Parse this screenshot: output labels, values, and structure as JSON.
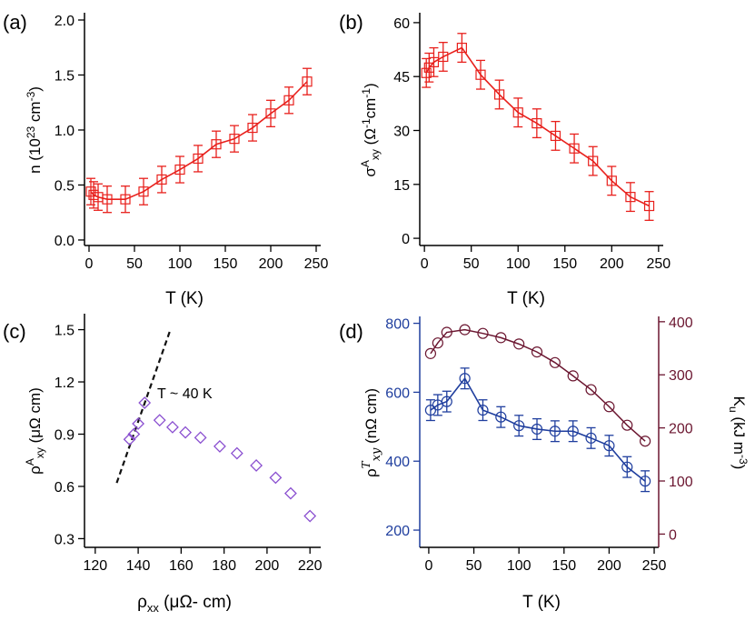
{
  "chart_data": [
    {
      "panel": "(a)",
      "type": "line",
      "xlabel": "T (K)",
      "ylabel_main": "n (10",
      "ylabel_sup": "23",
      "ylabel_tail": " cm",
      "ylabel_sup2": "-3",
      "ylabel_close": ")",
      "xlim": [
        -5,
        255
      ],
      "ylim": [
        -0.05,
        2.0
      ],
      "xticks": [
        0,
        50,
        100,
        150,
        200,
        250
      ],
      "yticks": [
        0.0,
        0.5,
        1.0,
        1.5,
        2.0
      ],
      "ytick_labels": [
        "0.0",
        "0.5",
        "1.0",
        "1.5",
        "2.0"
      ],
      "color": "#e8201c",
      "series": [
        {
          "name": "n",
          "x": [
            2,
            5,
            10,
            20,
            40,
            60,
            80,
            100,
            120,
            140,
            160,
            180,
            200,
            220,
            240
          ],
          "y": [
            0.44,
            0.41,
            0.39,
            0.37,
            0.37,
            0.44,
            0.55,
            0.64,
            0.74,
            0.87,
            0.92,
            1.02,
            1.15,
            1.27,
            1.44
          ],
          "err": [
            0.12,
            0.12,
            0.12,
            0.12,
            0.12,
            0.12,
            0.12,
            0.12,
            0.12,
            0.12,
            0.12,
            0.12,
            0.12,
            0.12,
            0.12
          ]
        }
      ]
    },
    {
      "panel": "(b)",
      "type": "line",
      "xlabel": "T (K)",
      "ylabel_main": "σ",
      "ylabel_sup": "A",
      "ylabel_sub": "xy",
      "ylabel_unit": " (Ω",
      "ylabel_sup2": "-1",
      "ylabel_unit2": "cm",
      "ylabel_sup3": "-1",
      "ylabel_close": ")",
      "xlim": [
        -5,
        255
      ],
      "ylim": [
        -2,
        62
      ],
      "xticks": [
        0,
        50,
        100,
        150,
        200,
        250
      ],
      "yticks": [
        0,
        15,
        30,
        45,
        60
      ],
      "ytick_labels": [
        "0",
        "15",
        "30",
        "45",
        "60"
      ],
      "color": "#e8201c",
      "series": [
        {
          "name": "sigma_A_xy",
          "x": [
            2,
            5,
            10,
            20,
            40,
            60,
            80,
            100,
            120,
            140,
            160,
            180,
            200,
            220,
            240
          ],
          "y": [
            46,
            47.5,
            49,
            50.5,
            53,
            45.5,
            40,
            35,
            32,
            28.5,
            25,
            21.5,
            16,
            11.5,
            9
          ],
          "err": [
            4,
            4,
            4,
            4,
            4,
            4,
            4,
            4,
            4,
            4,
            4,
            4,
            4,
            4,
            4
          ]
        }
      ]
    },
    {
      "panel": "(c)",
      "type": "scatter",
      "xlabel_main": "ρ",
      "xlabel_sub": "xx",
      "xlabel_unit": " (μΩ- cm)",
      "ylabel_main": "ρ",
      "ylabel_sup": "A",
      "ylabel_sub": "xy",
      "ylabel_unit": " (μΩ cm)",
      "annotation": "T ~ 40 K",
      "xlim": [
        115,
        225
      ],
      "ylim": [
        0.25,
        1.55
      ],
      "xticks": [
        120,
        140,
        160,
        180,
        200,
        220
      ],
      "yticks": [
        0.3,
        0.6,
        0.9,
        1.2,
        1.5
      ],
      "ytick_labels": [
        "0.3",
        "0.6",
        "0.9",
        "1.2",
        "1.5"
      ],
      "color": "#8a4fd0",
      "series": [
        {
          "name": "rho_A_xy vs rho_xx",
          "x": [
            136,
            138,
            140,
            143,
            150,
            156,
            162,
            169,
            178,
            186,
            195,
            204,
            211,
            220
          ],
          "y": [
            0.87,
            0.9,
            0.96,
            1.08,
            0.98,
            0.94,
            0.91,
            0.88,
            0.83,
            0.79,
            0.72,
            0.65,
            0.56,
            0.43
          ]
        }
      ],
      "fit_line": {
        "x": [
          130,
          155
        ],
        "y": [
          0.62,
          1.5
        ],
        "style": "dashed",
        "color": "#111111"
      }
    },
    {
      "panel": "(d)",
      "type": "line",
      "xlabel": "T (K)",
      "ylabel_left_main": "ρ",
      "ylabel_left_sup": "T",
      "ylabel_left_sub": "xy",
      "ylabel_left_unit": " (nΩ cm)",
      "ylabel_right_main": "K",
      "ylabel_right_sub": "u",
      "ylabel_right_unit": " (kJ m",
      "ylabel_right_sup": "-3",
      "ylabel_right_close": ")",
      "xlim": [
        -10,
        255
      ],
      "ylim_left": [
        150,
        820
      ],
      "ylim_right": [
        -25,
        410
      ],
      "xticks": [
        0,
        50,
        100,
        150,
        200,
        250
      ],
      "yticks_left": [
        200,
        400,
        600,
        800
      ],
      "ytick_labels_left": [
        "200",
        "400",
        "600",
        "800"
      ],
      "yticks_right": [
        0,
        100,
        200,
        300,
        400
      ],
      "ytick_labels_right": [
        "0",
        "100",
        "200",
        "300",
        "400"
      ],
      "color_left": "#1f3e9e",
      "color_right": "#6b1630",
      "series": [
        {
          "name": "rho_T_xy",
          "axis": "left",
          "x": [
            2,
            10,
            20,
            40,
            60,
            80,
            100,
            120,
            140,
            160,
            180,
            200,
            220,
            240
          ],
          "y": [
            548,
            563,
            573,
            640,
            548,
            528,
            503,
            493,
            487,
            487,
            467,
            445,
            383,
            342
          ],
          "err": [
            30,
            30,
            30,
            30,
            30,
            30,
            30,
            30,
            30,
            30,
            30,
            30,
            30,
            30
          ]
        },
        {
          "name": "K_u",
          "axis": "right",
          "x": [
            2,
            10,
            20,
            40,
            60,
            80,
            100,
            120,
            140,
            160,
            180,
            200,
            220,
            240
          ],
          "y": [
            340,
            360,
            380,
            385,
            378,
            370,
            358,
            343,
            323,
            298,
            272,
            240,
            205,
            175
          ]
        }
      ]
    }
  ],
  "panel_labels": [
    "(a)",
    "(b)",
    "(c)",
    "(d)"
  ]
}
